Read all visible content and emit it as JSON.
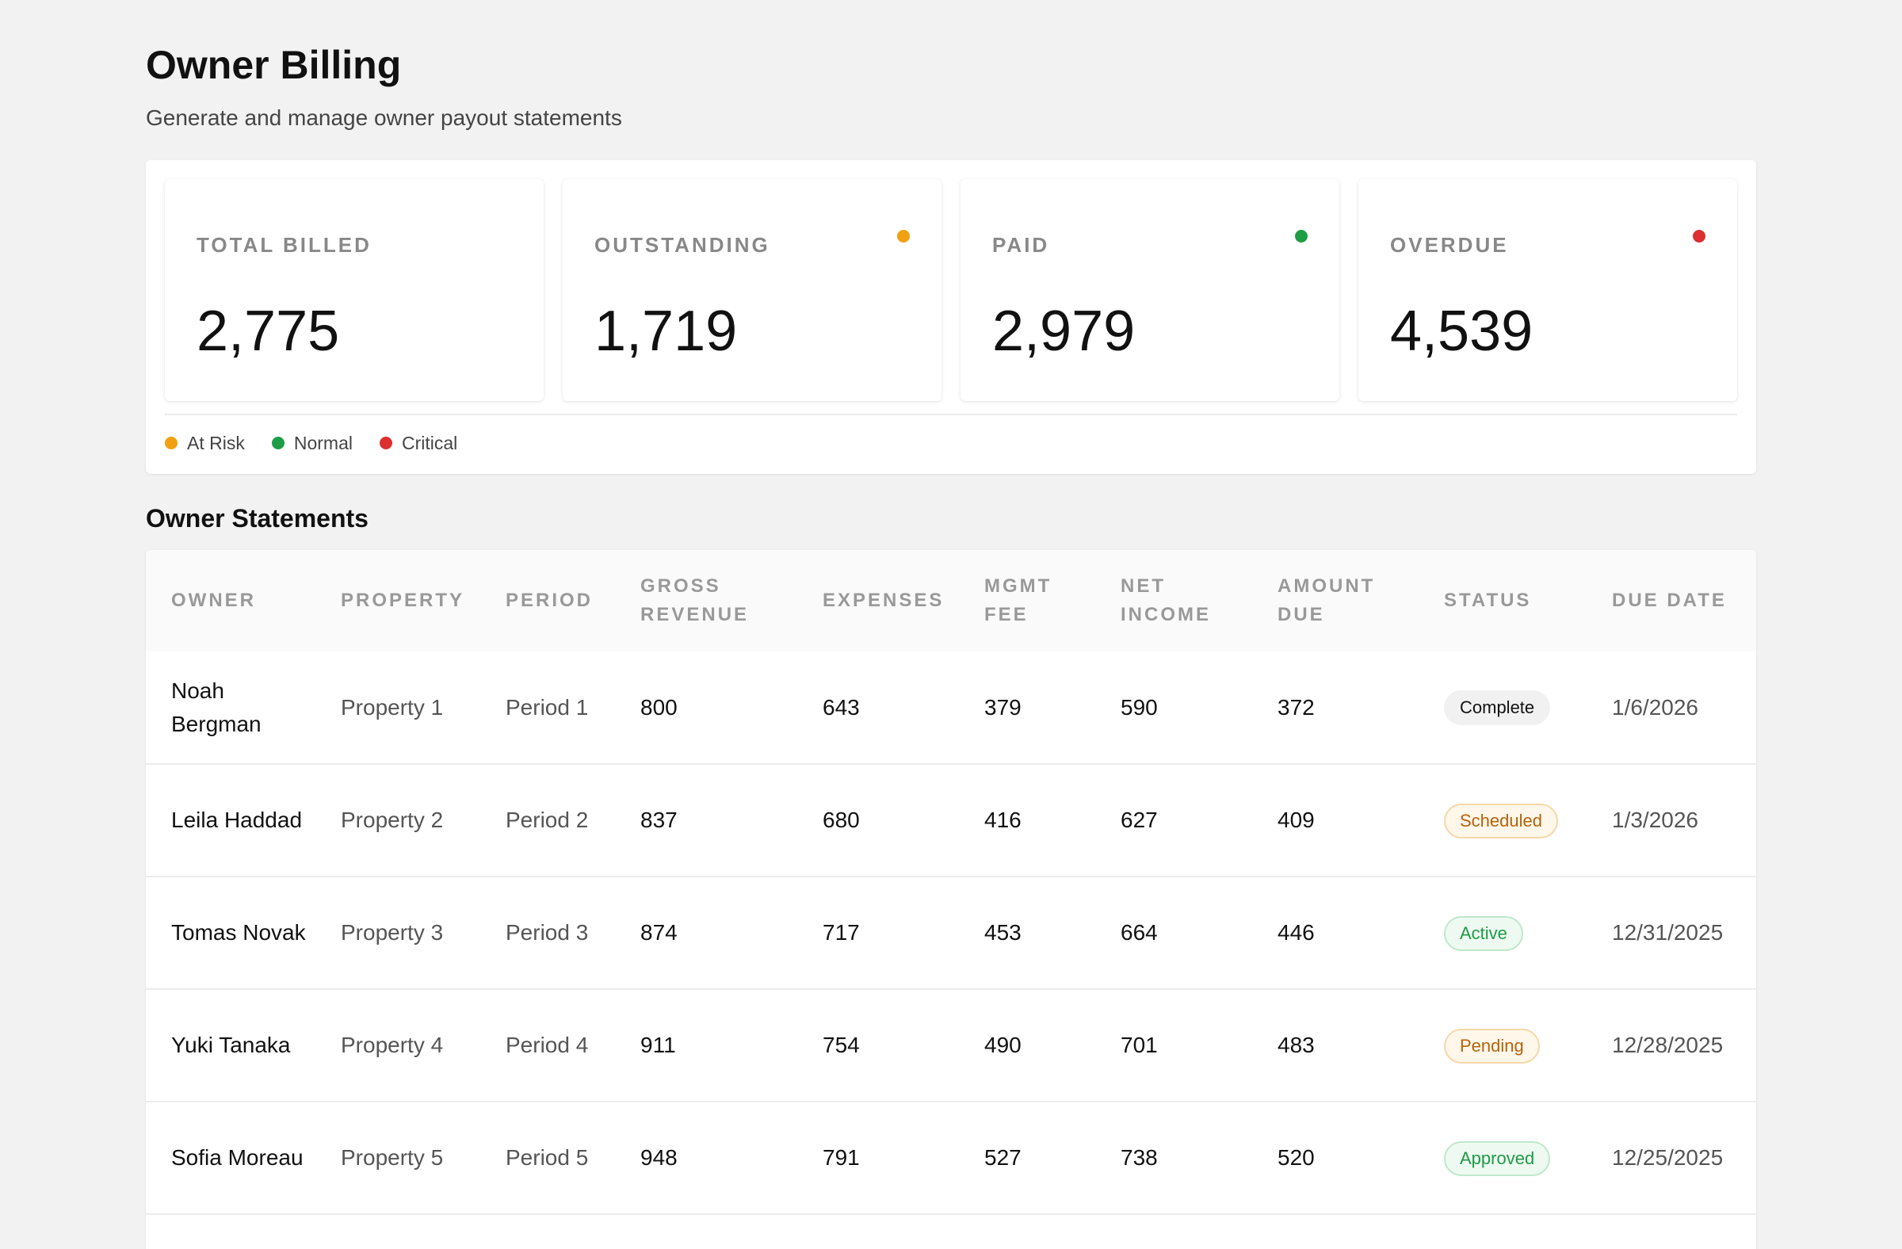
{
  "header": {
    "title": "Owner Billing",
    "subtitle": "Generate and manage owner payout statements"
  },
  "kpis": [
    {
      "label": "TOTAL BILLED",
      "value": "2,775",
      "status": ""
    },
    {
      "label": "OUTSTANDING",
      "value": "1,719",
      "status": "at-risk"
    },
    {
      "label": "PAID",
      "value": "2,979",
      "status": "normal"
    },
    {
      "label": "OVERDUE",
      "value": "4,539",
      "status": "critical"
    }
  ],
  "legend": [
    {
      "label": "At Risk",
      "color": "#f0a010"
    },
    {
      "label": "Normal",
      "color": "#1f9d46"
    },
    {
      "label": "Critical",
      "color": "#dc2f2f"
    }
  ],
  "status_colors": {
    "at-risk": "#f0a010",
    "normal": "#1f9d46",
    "critical": "#dc2f2f"
  },
  "statements": {
    "title": "Owner Statements",
    "columns": [
      "OWNER",
      "PROPERTY",
      "PERIOD",
      "GROSS REVENUE",
      "EXPENSES",
      "MGMT FEE",
      "NET INCOME",
      "AMOUNT DUE",
      "STATUS",
      "DUE DATE"
    ],
    "rows": [
      {
        "owner": "Noah Bergman",
        "property": "Property 1",
        "period": "Period 1",
        "gross": "800",
        "expenses": "643",
        "mgmt_fee": "379",
        "net_income": "590",
        "amount_due": "372",
        "status": "Complete",
        "status_kind": "complete",
        "due_date": "1/6/2026"
      },
      {
        "owner": "Leila Haddad",
        "property": "Property 2",
        "period": "Period 2",
        "gross": "837",
        "expenses": "680",
        "mgmt_fee": "416",
        "net_income": "627",
        "amount_due": "409",
        "status": "Scheduled",
        "status_kind": "scheduled",
        "due_date": "1/3/2026"
      },
      {
        "owner": "Tomas Novak",
        "property": "Property 3",
        "period": "Period 3",
        "gross": "874",
        "expenses": "717",
        "mgmt_fee": "453",
        "net_income": "664",
        "amount_due": "446",
        "status": "Active",
        "status_kind": "active",
        "due_date": "12/31/2025"
      },
      {
        "owner": "Yuki Tanaka",
        "property": "Property 4",
        "period": "Period 4",
        "gross": "911",
        "expenses": "754",
        "mgmt_fee": "490",
        "net_income": "701",
        "amount_due": "483",
        "status": "Pending",
        "status_kind": "pending",
        "due_date": "12/28/2025"
      },
      {
        "owner": "Sofia Moreau",
        "property": "Property 5",
        "period": "Period 5",
        "gross": "948",
        "expenses": "791",
        "mgmt_fee": "527",
        "net_income": "738",
        "amount_due": "520",
        "status": "Approved",
        "status_kind": "approved",
        "due_date": "12/25/2025"
      }
    ]
  }
}
